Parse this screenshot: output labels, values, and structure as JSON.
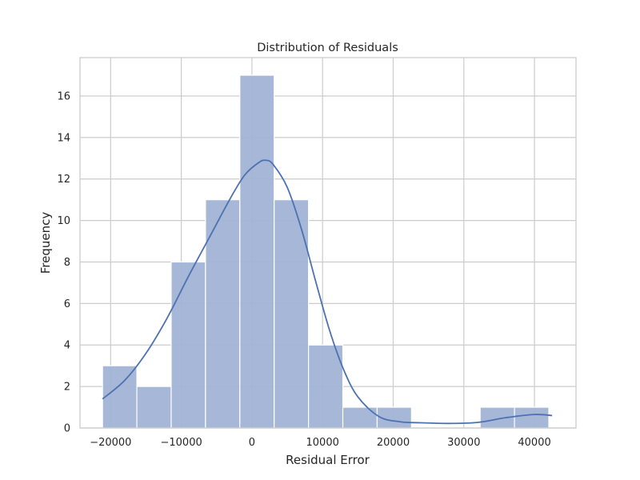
{
  "chart_data": {
    "type": "bar",
    "title": "Distribution of Residuals",
    "xlabel": "Residual Error",
    "ylabel": "Frequency",
    "xlim": [
      -24340,
      45880
    ],
    "ylim": [
      0,
      17.85
    ],
    "grid": true,
    "x_ticks": [
      -20000,
      -10000,
      0,
      10000,
      20000,
      30000,
      40000
    ],
    "x_tick_labels": [
      "−20000",
      "−10000",
      "0",
      "10000",
      "20000",
      "30000",
      "40000"
    ],
    "y_ticks": [
      0,
      2,
      4,
      6,
      8,
      10,
      12,
      14,
      16
    ],
    "y_tick_labels": [
      "0",
      "2",
      "4",
      "6",
      "8",
      "10",
      "12",
      "14",
      "16"
    ],
    "bin_edges": [
      -21150,
      -16290,
      -11430,
      -6570,
      -1710,
      3150,
      8010,
      12870,
      17730,
      22590,
      27450,
      32310,
      37170,
      42030
    ],
    "counts": [
      3,
      2,
      8,
      11,
      17,
      11,
      4,
      1,
      1,
      0,
      0,
      1,
      1
    ],
    "kde": {
      "x": [
        -21150,
        -18000,
        -15000,
        -12000,
        -9000,
        -6000,
        -3000,
        -1000,
        1000,
        2000,
        3000,
        5000,
        7000,
        9000,
        11000,
        13000,
        15000,
        18000,
        21000,
        24000,
        28000,
        32000,
        36000,
        40000,
        42500
      ],
      "y": [
        1.4,
        2.3,
        3.6,
        5.3,
        7.3,
        9.2,
        11.1,
        12.2,
        12.8,
        12.9,
        12.7,
        11.6,
        9.6,
        7.1,
        4.7,
        2.8,
        1.5,
        0.55,
        0.3,
        0.25,
        0.22,
        0.27,
        0.5,
        0.65,
        0.6
      ]
    },
    "colors": {
      "bar_fill": "#a1b3d6",
      "bar_stroke": "#ffffff",
      "kde_line": "#4c72b0",
      "grid": "#cccccc",
      "axes_edge": "#cccccc"
    }
  }
}
